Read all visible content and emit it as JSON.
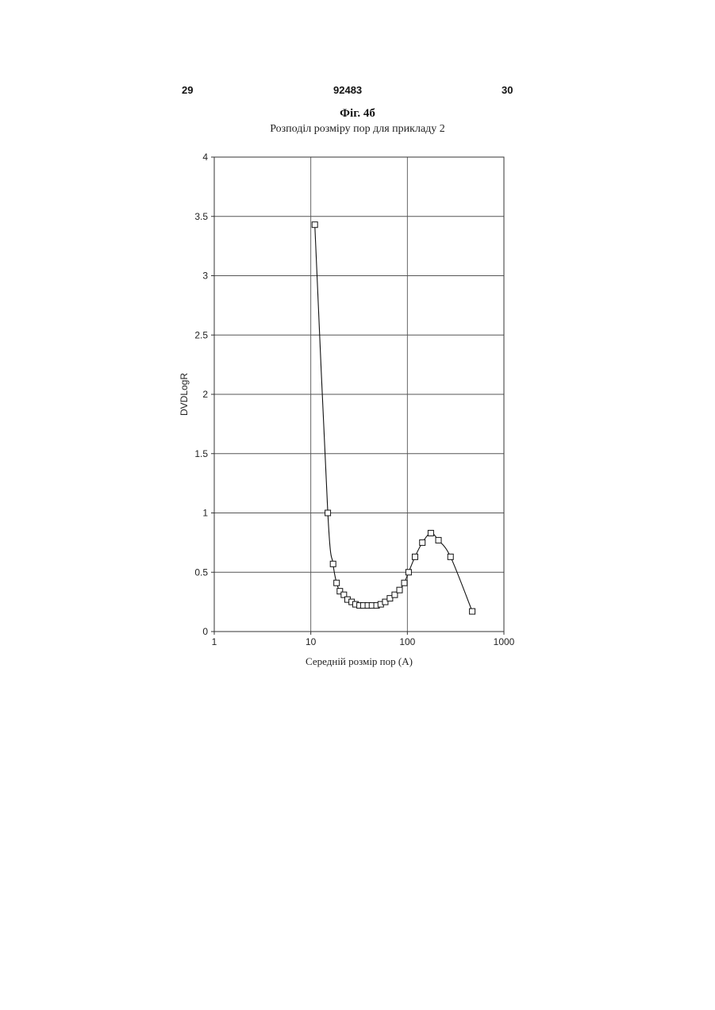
{
  "header": {
    "page_left": "29",
    "doc_number": "92483",
    "page_right": "30"
  },
  "figure": {
    "label": "Фіг. 4б",
    "subtitle": "Розподіл розміру пор для прикладу 2"
  },
  "chart_data": {
    "type": "line",
    "xscale": "log",
    "xlim": [
      1,
      1000
    ],
    "ylim": [
      0,
      4
    ],
    "xticks": [
      "1",
      "10",
      "100",
      "1000"
    ],
    "yticks": [
      "0",
      "0.5",
      "1",
      "1.5",
      "2",
      "2.5",
      "3",
      "3.5",
      "4"
    ],
    "xlabel": "Середній розмір пор (А)",
    "ylabel": "DVDLogR",
    "grid": true,
    "marker": "hollow-square",
    "series": [
      {
        "x": [
          11,
          15,
          17,
          18.5,
          20,
          22,
          24,
          26.5,
          29,
          32,
          35,
          39,
          43,
          48,
          53,
          59,
          66,
          74,
          83,
          93,
          103,
          120,
          143,
          175,
          210,
          280,
          470
        ],
        "y": [
          3.43,
          1.0,
          0.57,
          0.41,
          0.34,
          0.31,
          0.27,
          0.25,
          0.23,
          0.22,
          0.22,
          0.22,
          0.22,
          0.22,
          0.23,
          0.25,
          0.28,
          0.31,
          0.35,
          0.41,
          0.5,
          0.63,
          0.75,
          0.83,
          0.77,
          0.63,
          0.17
        ]
      }
    ]
  }
}
